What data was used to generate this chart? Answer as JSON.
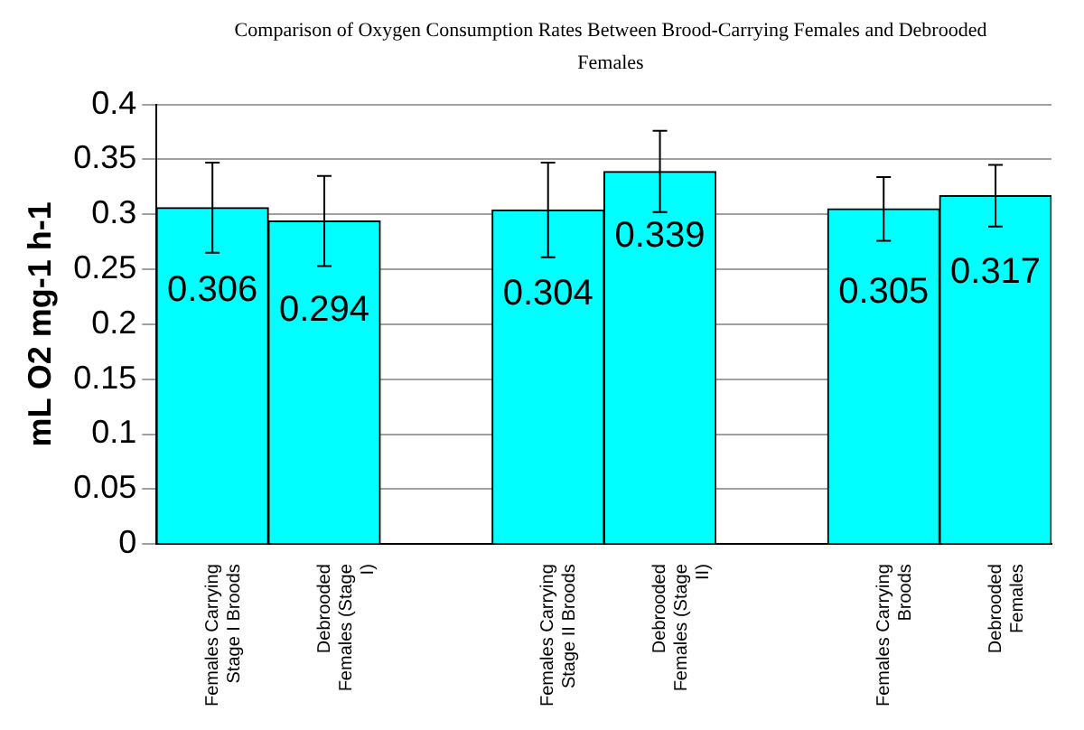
{
  "chart_data": {
    "type": "bar",
    "title": "Comparison of Oxygen Consumption Rates Between Brood-Carrying Females and Debrooded Females",
    "ylabel": "mL O2 mg-1 h-1",
    "categories": [
      "Females Carrying Stage I Broods",
      "Debrooded Females  (Stage I)",
      null,
      "Females Carrying Stage II Broods",
      "Debrooded Females  (Stage II)",
      null,
      "Females Carrying Broods",
      "Debrooded Females"
    ],
    "values": [
      0.306,
      0.294,
      null,
      0.304,
      0.339,
      null,
      0.305,
      0.317
    ],
    "errors": [
      0.041,
      0.041,
      null,
      0.043,
      0.037,
      null,
      0.029,
      0.028
    ],
    "color": "#00ffff",
    "data_labels": true,
    "ylim": [
      0,
      0.4
    ],
    "yticks": [
      0,
      0.05,
      0.1,
      0.15,
      0.2,
      0.25,
      0.3,
      0.35,
      0.4
    ],
    "grid": "y",
    "legend": false
  }
}
